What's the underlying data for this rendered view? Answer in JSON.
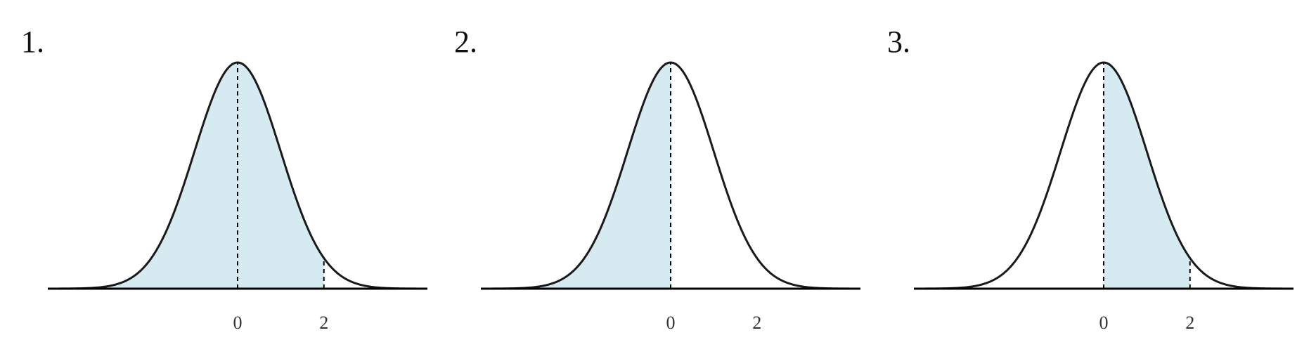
{
  "colors": {
    "fill": "#d6eaf2",
    "curve": "#1a1a1a",
    "axis": "#000000",
    "dashed": "#000000"
  },
  "panels": [
    {
      "label": "1."
    },
    {
      "label": "2."
    },
    {
      "label": "3."
    }
  ],
  "chart_data": [
    {
      "type": "area",
      "distribution": "standard normal density",
      "xlim": [
        -4.4,
        4.4
      ],
      "ticks": [
        0,
        2
      ],
      "tick_labels": [
        "0",
        "2"
      ],
      "markers": [
        0,
        2
      ],
      "shaded_region": [
        null,
        2
      ]
    },
    {
      "type": "area",
      "distribution": "standard normal density",
      "xlim": [
        -4.4,
        4.4
      ],
      "ticks": [
        0,
        2
      ],
      "tick_labels": [
        "0",
        "2"
      ],
      "markers": [
        0
      ],
      "shaded_region": [
        null,
        0
      ]
    },
    {
      "type": "area",
      "distribution": "standard normal density",
      "xlim": [
        -4.4,
        4.4
      ],
      "ticks": [
        0,
        2
      ],
      "tick_labels": [
        "0",
        "2"
      ],
      "markers": [
        0,
        2
      ],
      "shaded_region": [
        0,
        2
      ]
    }
  ]
}
